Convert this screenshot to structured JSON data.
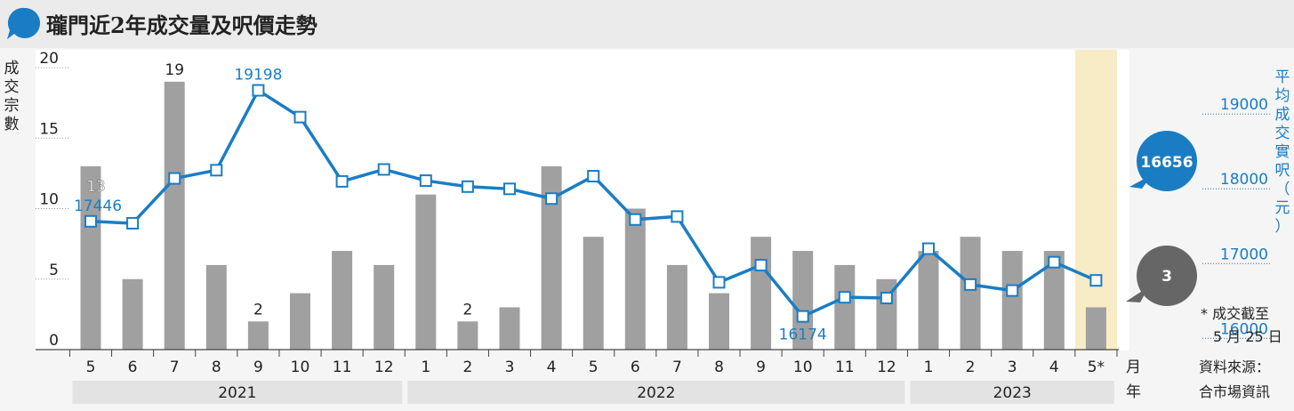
{
  "header": {
    "title": "瓏門近2年成交量及呎價走勢"
  },
  "axes": {
    "left_label": "成交宗數",
    "right_label": "平均成交實呎（元）",
    "x_unit_month": "月",
    "x_unit_year": "年"
  },
  "callouts": {
    "price_latest": "16656",
    "count_latest": "3"
  },
  "notes": {
    "asterisk": "* 成交截至",
    "asterisk_date": "5 月 25 日",
    "source_line1": "資料來源：",
    "source_line2": "合市場資訊"
  },
  "chart_data": {
    "type": "bar+line",
    "categories": [
      "5",
      "6",
      "7",
      "8",
      "9",
      "10",
      "11",
      "12",
      "1",
      "2",
      "3",
      "4",
      "5",
      "6",
      "7",
      "8",
      "9",
      "10",
      "11",
      "12",
      "1",
      "2",
      "3",
      "4",
      "5*"
    ],
    "years": [
      {
        "label": "2021",
        "span": [
          0,
          7
        ]
      },
      {
        "label": "2022",
        "span": [
          8,
          19
        ]
      },
      {
        "label": "2023",
        "span": [
          20,
          24
        ]
      }
    ],
    "bars": {
      "axis": "left",
      "values": [
        13,
        5,
        19,
        6,
        2,
        4,
        7,
        6,
        11,
        2,
        3,
        13,
        8,
        10,
        6,
        4,
        8,
        7,
        6,
        5,
        7,
        8,
        7,
        7,
        3
      ],
      "ylim": [
        0,
        20
      ],
      "ticks": [
        0,
        5,
        10,
        15,
        20
      ],
      "color": "#a0a0a0",
      "labeled_values": {
        "0": "13",
        "2": "19",
        "4": "2",
        "9": "2"
      }
    },
    "line": {
      "axis": "right",
      "values": [
        17446,
        17420,
        18020,
        18130,
        19198,
        18840,
        17980,
        18140,
        17990,
        17910,
        17880,
        17750,
        18050,
        17470,
        17510,
        16630,
        16860,
        16174,
        16430,
        16420,
        17080,
        16600,
        16520,
        16900,
        16656
      ],
      "ylim": [
        15730,
        19740
      ],
      "ticks": [
        16000,
        17000,
        18000,
        19000
      ],
      "color": "#1a7dc4",
      "labeled_values": {
        "0": "17446",
        "4": "19198",
        "17": "16174"
      }
    },
    "highlight_index": 24
  }
}
